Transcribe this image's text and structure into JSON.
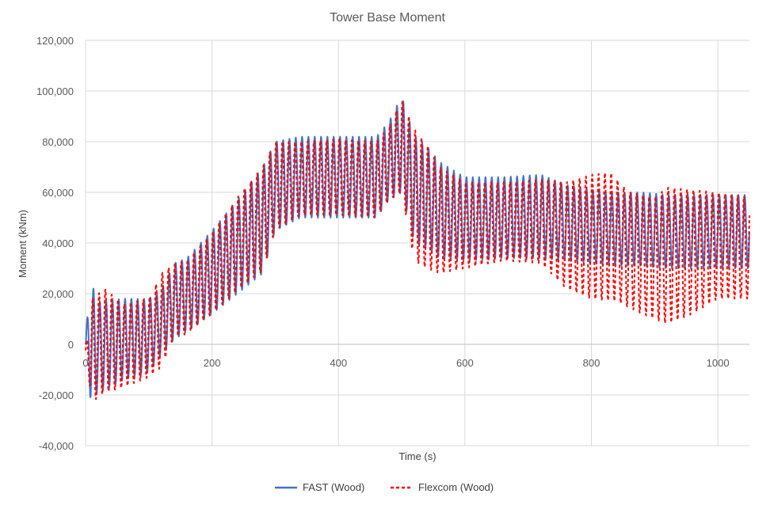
{
  "chart_data": {
    "type": "line",
    "title": "Tower Base Moment",
    "xlabel": "Time (s)",
    "ylabel": "Moment (kNm)",
    "xlim": [
      0,
      1050
    ],
    "ylim": [
      -40000,
      120000
    ],
    "x_ticks": [
      "0",
      "200",
      "400",
      "600",
      "800",
      "1000"
    ],
    "y_ticks": [
      "-40,000",
      "-20,000",
      "0",
      "20,000",
      "40,000",
      "60,000",
      "80,000",
      "100,000",
      "120,000"
    ],
    "grid": true,
    "legend_position": "bottom",
    "oscillation_period_s": 10,
    "series": [
      {
        "name": "FAST (Wood)",
        "color": "#4472C4",
        "style": "solid",
        "upper_envelope": [
          [
            0,
            3000
          ],
          [
            8,
            25000
          ],
          [
            20,
            17000
          ],
          [
            60,
            18000
          ],
          [
            100,
            18000
          ],
          [
            120,
            22000
          ],
          [
            140,
            32000
          ],
          [
            160,
            34000
          ],
          [
            200,
            45000
          ],
          [
            240,
            57000
          ],
          [
            280,
            70000
          ],
          [
            300,
            80000
          ],
          [
            340,
            82000
          ],
          [
            400,
            82000
          ],
          [
            460,
            82000
          ],
          [
            480,
            88000
          ],
          [
            500,
            98000
          ],
          [
            520,
            82000
          ],
          [
            540,
            78000
          ],
          [
            560,
            72000
          ],
          [
            600,
            66000
          ],
          [
            660,
            66000
          ],
          [
            720,
            67000
          ],
          [
            760,
            63000
          ],
          [
            800,
            61000
          ],
          [
            840,
            60000
          ],
          [
            880,
            60000
          ],
          [
            920,
            59000
          ],
          [
            1000,
            59000
          ],
          [
            1050,
            59000
          ]
        ],
        "lower_envelope": [
          [
            0,
            -3000
          ],
          [
            8,
            -22000
          ],
          [
            20,
            -19000
          ],
          [
            60,
            -14000
          ],
          [
            100,
            -11000
          ],
          [
            120,
            -4000
          ],
          [
            140,
            2000
          ],
          [
            160,
            5000
          ],
          [
            200,
            12000
          ],
          [
            240,
            20000
          ],
          [
            280,
            28000
          ],
          [
            300,
            45000
          ],
          [
            340,
            50000
          ],
          [
            400,
            50000
          ],
          [
            460,
            50000
          ],
          [
            480,
            57000
          ],
          [
            500,
            60000
          ],
          [
            520,
            40000
          ],
          [
            540,
            38000
          ],
          [
            560,
            34000
          ],
          [
            600,
            33000
          ],
          [
            660,
            34000
          ],
          [
            720,
            34000
          ],
          [
            760,
            33000
          ],
          [
            800,
            32000
          ],
          [
            840,
            31000
          ],
          [
            880,
            31000
          ],
          [
            920,
            30000
          ],
          [
            1000,
            30000
          ],
          [
            1050,
            30000
          ]
        ]
      },
      {
        "name": "Flexcom (Wood)",
        "color": "#FF0000",
        "style": "dashed",
        "upper_envelope": [
          [
            0,
            -2000
          ],
          [
            10,
            18000
          ],
          [
            30,
            22000
          ],
          [
            60,
            16000
          ],
          [
            100,
            18000
          ],
          [
            120,
            28000
          ],
          [
            140,
            32000
          ],
          [
            160,
            33000
          ],
          [
            200,
            44000
          ],
          [
            240,
            58000
          ],
          [
            280,
            70000
          ],
          [
            300,
            80000
          ],
          [
            340,
            80000
          ],
          [
            400,
            81000
          ],
          [
            460,
            80000
          ],
          [
            480,
            86000
          ],
          [
            500,
            97000
          ],
          [
            520,
            85000
          ],
          [
            540,
            79000
          ],
          [
            560,
            70000
          ],
          [
            600,
            64000
          ],
          [
            660,
            64000
          ],
          [
            720,
            65000
          ],
          [
            760,
            64000
          ],
          [
            800,
            67000
          ],
          [
            830,
            68000
          ],
          [
            860,
            60000
          ],
          [
            900,
            58000
          ],
          [
            920,
            62000
          ],
          [
            1000,
            60000
          ],
          [
            1050,
            58000
          ]
        ],
        "lower_envelope": [
          [
            0,
            -4000
          ],
          [
            10,
            -23000
          ],
          [
            30,
            -19000
          ],
          [
            60,
            -17000
          ],
          [
            100,
            -13000
          ],
          [
            120,
            -9000
          ],
          [
            140,
            3000
          ],
          [
            160,
            4000
          ],
          [
            200,
            12000
          ],
          [
            240,
            21000
          ],
          [
            280,
            29000
          ],
          [
            300,
            45000
          ],
          [
            340,
            51000
          ],
          [
            400,
            51000
          ],
          [
            460,
            50000
          ],
          [
            480,
            57000
          ],
          [
            500,
            60000
          ],
          [
            520,
            33000
          ],
          [
            540,
            30000
          ],
          [
            560,
            28000
          ],
          [
            600,
            30000
          ],
          [
            660,
            33000
          ],
          [
            720,
            32000
          ],
          [
            760,
            22000
          ],
          [
            800,
            18000
          ],
          [
            840,
            17000
          ],
          [
            880,
            12000
          ],
          [
            920,
            8000
          ],
          [
            960,
            12000
          ],
          [
            1000,
            18000
          ],
          [
            1050,
            18000
          ]
        ]
      }
    ]
  }
}
